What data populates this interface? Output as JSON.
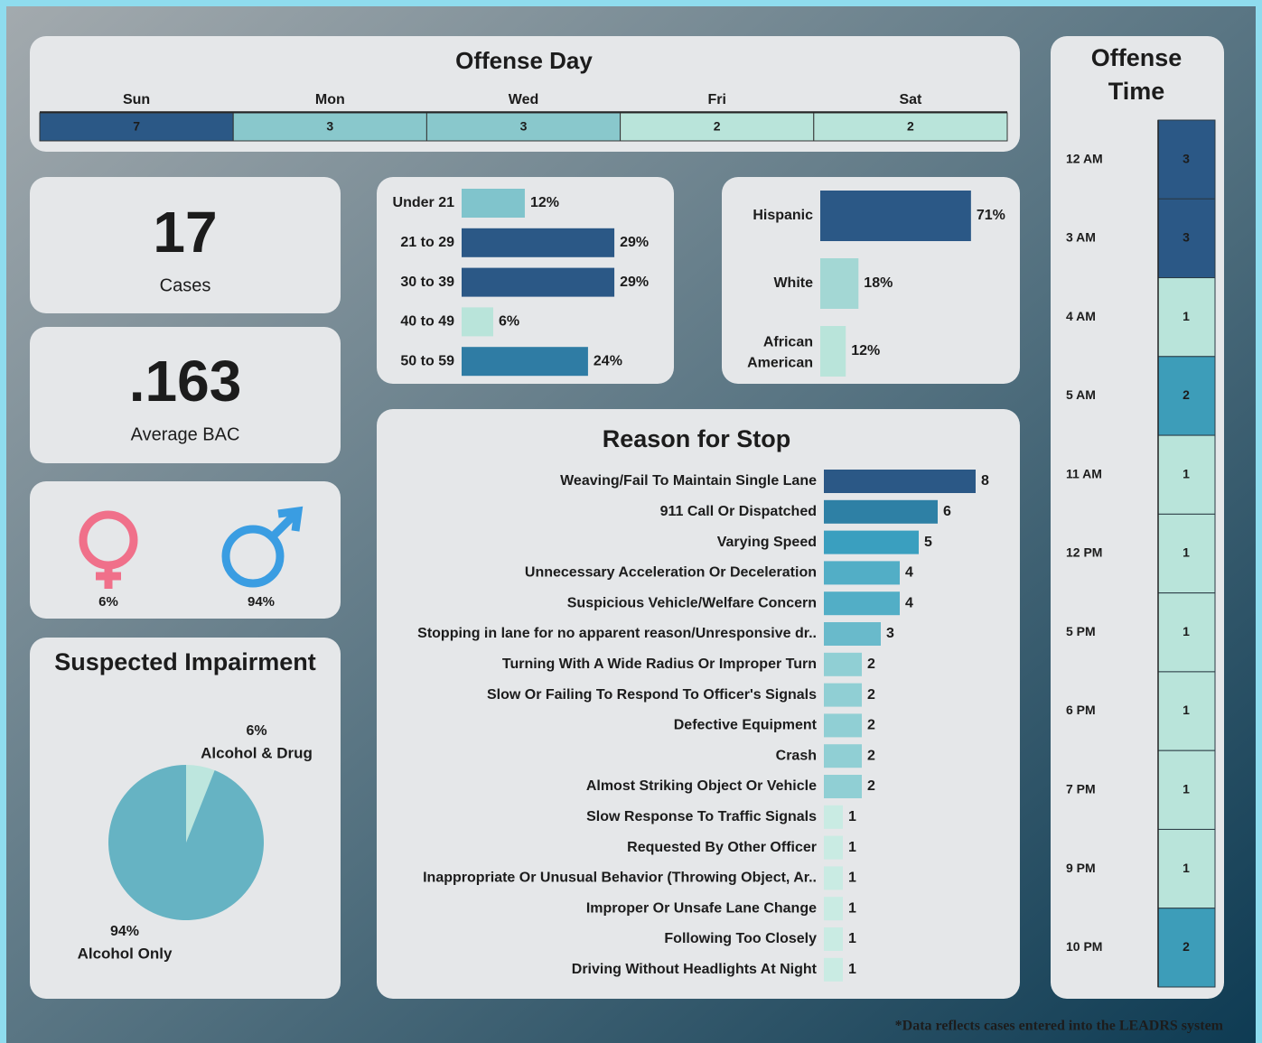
{
  "offense_day": {
    "type": "strip",
    "title": "Offense Day",
    "categories": [
      "Sun",
      "Mon",
      "Wed",
      "Fri",
      "Sat"
    ],
    "values": [
      7,
      3,
      3,
      2,
      2
    ],
    "colors": [
      "#2b5886",
      "#89c8cc",
      "#89c8cc",
      "#b9e4da",
      "#b9e4da"
    ]
  },
  "offense_time": {
    "type": "strip",
    "title": "Offense Time",
    "categories": [
      "12 AM",
      "3 AM",
      "4 AM",
      "5 AM",
      "11 AM",
      "12 PM",
      "5 PM",
      "6 PM",
      "7 PM",
      "9 PM",
      "10 PM"
    ],
    "values": [
      3,
      3,
      1,
      2,
      1,
      1,
      1,
      1,
      1,
      1,
      2
    ],
    "colors": [
      "#2b5886",
      "#2b5886",
      "#b9e4da",
      "#3d9db9",
      "#b9e4da",
      "#b9e4da",
      "#b9e4da",
      "#b9e4da",
      "#b9e4da",
      "#b9e4da",
      "#3d9db9"
    ]
  },
  "cases": {
    "value": 17,
    "label": "Cases"
  },
  "bac": {
    "value": ".163",
    "label": "Average BAC"
  },
  "gender": {
    "type": "icon",
    "values": [
      6,
      94
    ],
    "value_labels": [
      "6%",
      "94%"
    ],
    "colors": [
      "#f0708a",
      "#3a9de2"
    ]
  },
  "impairment": {
    "type": "pie",
    "title": "Suspected Impairment",
    "categories": [
      "Alcohol & Drug",
      "Alcohol Only"
    ],
    "values": [
      6,
      94
    ],
    "value_labels": [
      "6%",
      "94%"
    ],
    "colors": [
      "#bde6de",
      "#66b3c3"
    ]
  },
  "age": {
    "type": "bar",
    "categories": [
      "Under 21",
      "21 to 29",
      "30 to 39",
      "40 to 49",
      "50 to 59"
    ],
    "values": [
      12,
      29,
      29,
      6,
      24
    ],
    "value_labels": [
      "12%",
      "29%",
      "29%",
      "6%",
      "24%"
    ],
    "colors": [
      "#80c4cc",
      "#2b5886",
      "#2b5886",
      "#b9e4da",
      "#2f7ca4"
    ]
  },
  "ethnicity": {
    "type": "bar",
    "categories": [
      "Hispanic",
      "White",
      "African American"
    ],
    "values": [
      71,
      18,
      12
    ],
    "value_labels": [
      "71%",
      "18%",
      "12%"
    ],
    "colors": [
      "#2b5886",
      "#a3d7d4",
      "#b9e4da"
    ]
  },
  "reason": {
    "type": "bar",
    "title": "Reason for Stop",
    "categories": [
      "Weaving/Fail To Maintain Single Lane",
      "911 Call Or Dispatched",
      "Varying Speed",
      "Unnecessary Acceleration Or Deceleration",
      "Suspicious Vehicle/Welfare Concern",
      "Stopping in lane for no apparent reason/Unresponsive dr..",
      "Turning With A Wide Radius Or Improper Turn",
      "Slow Or Failing To Respond To Officer's Signals",
      "Defective Equipment",
      "Crash",
      "Almost Striking Object Or Vehicle",
      "Slow Response To Traffic Signals",
      "Requested By Other Officer",
      "Inappropriate Or Unusual Behavior (Throwing Object, Ar..",
      "Improper Or Unsafe Lane Change",
      "Following Too Closely",
      "Driving Without Headlights At Night"
    ],
    "values": [
      8,
      6,
      5,
      4,
      4,
      3,
      2,
      2,
      2,
      2,
      2,
      1,
      1,
      1,
      1,
      1,
      1
    ],
    "colors": [
      "#2b5886",
      "#2e80a5",
      "#3a9fbf",
      "#52aec6",
      "#52aec6",
      "#69bacb",
      "#90cfd4",
      "#90cfd4",
      "#90cfd4",
      "#90cfd4",
      "#90cfd4",
      "#c9ebe3",
      "#c9ebe3",
      "#c9ebe3",
      "#c9ebe3",
      "#c9ebe3",
      "#c9ebe3"
    ]
  },
  "footnote": "*Data reflects cases entered into the LEADRS system"
}
